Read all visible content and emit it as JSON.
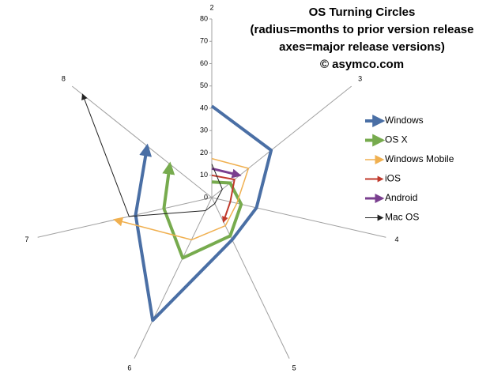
{
  "chart_data": {
    "type": "radar",
    "title_lines": [
      "OS Turning Circles",
      "(radius=months to prior version release",
      "axes=major release versions)",
      "© asymco.com"
    ],
    "categories": [
      "2",
      "3",
      "4",
      "5",
      "6",
      "7",
      "8"
    ],
    "rlim": [
      0,
      80
    ],
    "rticks": [
      0,
      10,
      20,
      30,
      40,
      50,
      60,
      70,
      80
    ],
    "series": [
      {
        "name": "Windows",
        "color": "#4a6fa5",
        "width": 4,
        "values": [
          41,
          34,
          20.5,
          21,
          61,
          35,
          37
        ]
      },
      {
        "name": "OS X",
        "color": "#77ab4e",
        "width": 4,
        "values": [
          7,
          10.5,
          13.5,
          19,
          30,
          22,
          24
        ]
      },
      {
        "name": "Windows Mobile",
        "color": "#f0b050",
        "width": 1.5,
        "values": [
          17.5,
          21,
          11.5,
          14,
          21,
          44.5,
          null
        ]
      },
      {
        "name": "iOS",
        "color": "#c0392b",
        "width": 2,
        "values": [
          10,
          13,
          8.5,
          12,
          null,
          null,
          null
        ]
      },
      {
        "name": "Android",
        "color": "#7a3f8f",
        "width": 3,
        "values": [
          13,
          16,
          null,
          null,
          null,
          null,
          null
        ]
      },
      {
        "name": "Mac OS",
        "color": "#222222",
        "width": 1,
        "values": [
          15,
          6,
          2.5,
          3,
          6.5,
          38,
          74
        ]
      }
    ]
  }
}
